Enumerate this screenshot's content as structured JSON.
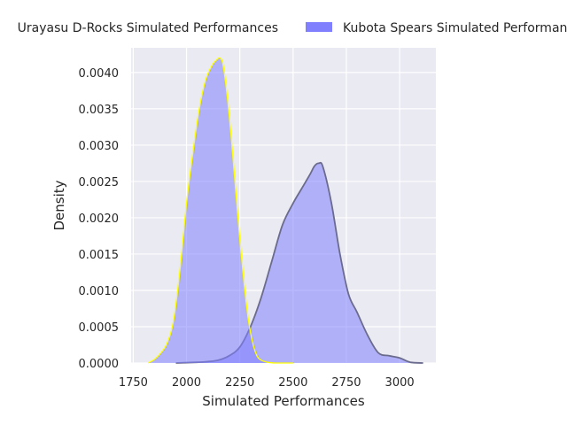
{
  "chart_data": {
    "type": "area",
    "xlabel": "Simulated Performances",
    "ylabel": "Density",
    "xlim": [
      1740,
      3170
    ],
    "ylim": [
      0,
      0.00434
    ],
    "x_ticks": [
      1750,
      2000,
      2250,
      2500,
      2750,
      3000
    ],
    "x_tick_labels": [
      "1750",
      "2000",
      "2250",
      "2500",
      "2750",
      "3000"
    ],
    "y_ticks": [
      0,
      0.0005,
      0.001,
      0.0015,
      0.002,
      0.0025,
      0.003,
      0.0035,
      0.004
    ],
    "y_tick_labels": [
      "0.0000",
      "0.0005",
      "0.0010",
      "0.0015",
      "0.0020",
      "0.0025",
      "0.0030",
      "0.0035",
      "0.0040"
    ],
    "grid": true,
    "legend_position": "top",
    "colors": {
      "plot_background": "#eaeaf2",
      "grid": "#ffffff",
      "fill": "#8080ff",
      "series1_line": "#ffff00",
      "series2_line": "#6b6b8e",
      "text": "#262626"
    },
    "series": [
      {
        "name": "Urayasu D-Rocks Simulated Performances",
        "x": [
          1820,
          1850,
          1880,
          1910,
          1940,
          1970,
          2000,
          2030,
          2060,
          2090,
          2120,
          2140,
          2155,
          2170,
          2190,
          2210,
          2230,
          2250,
          2270,
          2290,
          2310,
          2330,
          2350,
          2380,
          2420,
          2500
        ],
        "y": [
          0,
          5e-05,
          0.00014,
          0.00028,
          0.0006,
          0.0013,
          0.0022,
          0.0029,
          0.0035,
          0.0039,
          0.0041,
          0.00417,
          0.0042,
          0.00412,
          0.0037,
          0.0031,
          0.0024,
          0.0017,
          0.0011,
          0.0006,
          0.00028,
          0.0001,
          4e-05,
          1e-05,
          0,
          0
        ]
      },
      {
        "name": "Kubota Spears Simulated Performances",
        "x": [
          1950,
          2050,
          2100,
          2150,
          2200,
          2250,
          2300,
          2350,
          2400,
          2450,
          2500,
          2540,
          2580,
          2600,
          2620,
          2640,
          2680,
          2720,
          2760,
          2800,
          2850,
          2900,
          2950,
          3000,
          3050,
          3110
        ],
        "y": [
          0,
          1e-05,
          2e-05,
          4e-05,
          0.0001,
          0.00022,
          0.0005,
          0.0009,
          0.0014,
          0.0019,
          0.0022,
          0.0024,
          0.0026,
          0.00271,
          0.00275,
          0.0027,
          0.0022,
          0.0015,
          0.00095,
          0.0007,
          0.00038,
          0.00014,
          0.0001,
          7e-05,
          1e-05,
          0
        ]
      }
    ]
  }
}
